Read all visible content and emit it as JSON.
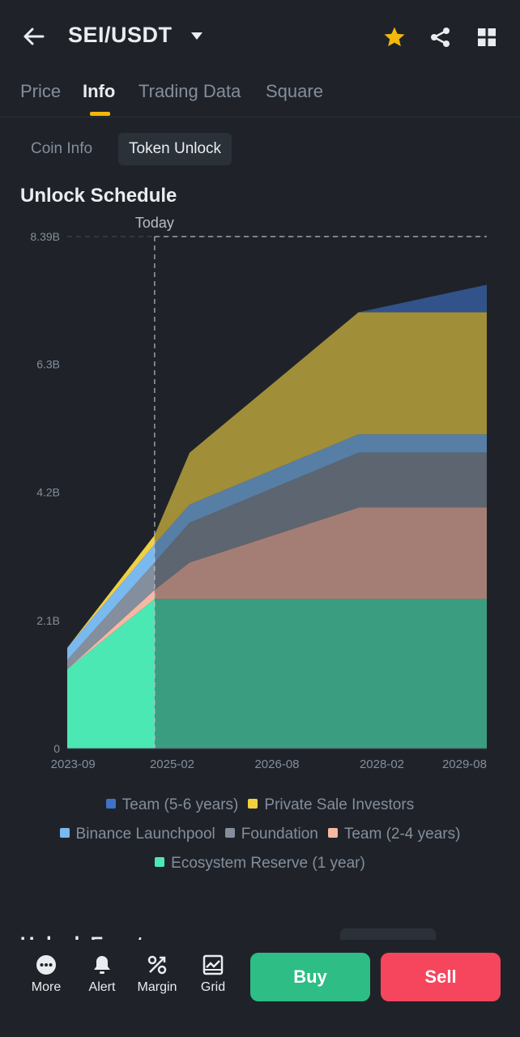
{
  "header": {
    "pair": "SEI/USDT"
  },
  "tabs": [
    {
      "label": "Price"
    },
    {
      "label": "Info"
    },
    {
      "label": "Trading Data"
    },
    {
      "label": "Square"
    }
  ],
  "subtabs": [
    {
      "label": "Coin Info"
    },
    {
      "label": "Token Unlock"
    }
  ],
  "section_title": "Unlock Schedule",
  "next_section_title": "Unlock Events",
  "colors": {
    "star": "#f0b90b",
    "buy": "#2ebd85",
    "sell": "#f6465d"
  },
  "chart_data": {
    "type": "area",
    "stacked": true,
    "title": "Unlock Schedule",
    "marker": {
      "label": "Today",
      "x": "2024-11"
    },
    "x": [
      "2023-08",
      "2024-11",
      "2025-05",
      "2027-10",
      "2029-08"
    ],
    "x_tick_labels": [
      "2023-09",
      "2025-02",
      "2026-08",
      "2028-02",
      "2029-08"
    ],
    "x_tick_values": [
      "2023-09",
      "2025-02",
      "2026-08",
      "2028-02",
      "2029-08"
    ],
    "ylim": [
      0,
      8.39
    ],
    "y_unit": "B",
    "y_tick_labels": [
      "0",
      "2.1B",
      "4.2B",
      "6.3B",
      "8.39B"
    ],
    "y_tick_values": [
      0,
      2.1,
      4.2,
      6.3,
      8.39
    ],
    "series": [
      {
        "name": "Ecosystem Reserve (1 year)",
        "color": "#4ce8b4",
        "values": [
          1.3,
          2.45,
          2.45,
          2.45,
          2.45
        ]
      },
      {
        "name": "Team (2-4  years)",
        "color": "#f6b7a3",
        "values": [
          0.0,
          0.15,
          0.6,
          1.5,
          1.5
        ]
      },
      {
        "name": "Foundation",
        "color": "#848e9c",
        "values": [
          0.15,
          0.45,
          0.65,
          0.9,
          0.9
        ]
      },
      {
        "name": "Binance Launchpool",
        "color": "#7ab8f0",
        "values": [
          0.2,
          0.3,
          0.3,
          0.3,
          0.3
        ]
      },
      {
        "name": "Private Sale Investors",
        "color": "#f0d042",
        "values": [
          0.0,
          0.15,
          0.85,
          2.0,
          2.0
        ]
      },
      {
        "name": "Team (5-6 years)",
        "color": "#3e72c4",
        "values": [
          0.0,
          0.0,
          0.0,
          0.0,
          0.45
        ]
      }
    ],
    "legend": [
      {
        "name": "Team (5-6 years)",
        "color": "#3e72c4"
      },
      {
        "name": "Private Sale Investors",
        "color": "#f0d042"
      },
      {
        "name": "Binance Launchpool",
        "color": "#7ab8f0"
      },
      {
        "name": "Foundation",
        "color": "#848e9c"
      },
      {
        "name": "Team (2-4  years)",
        "color": "#f6b7a3"
      },
      {
        "name": "Ecosystem Reserve (1 year)",
        "color": "#4ce8b4"
      }
    ]
  },
  "bottom_nav": [
    {
      "label": "More",
      "icon": "more-icon"
    },
    {
      "label": "Alert",
      "icon": "bell-icon"
    },
    {
      "label": "Margin",
      "icon": "margin-icon"
    },
    {
      "label": "Grid",
      "icon": "grid-bot-icon"
    }
  ],
  "actions": {
    "buy": "Buy",
    "sell": "Sell"
  }
}
